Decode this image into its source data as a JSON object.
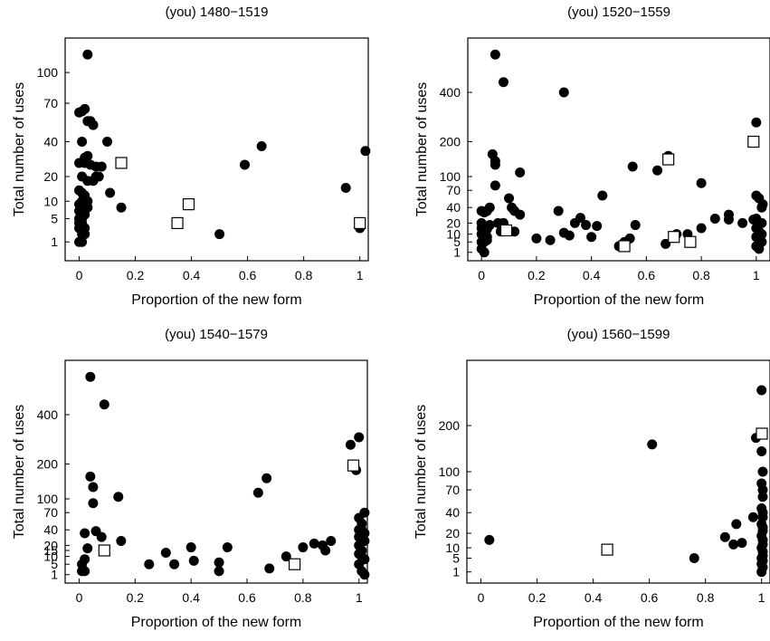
{
  "figure": {
    "panel_titles": [
      "(you)  1480−1519",
      "(you)  1520−1559",
      "(you)  1540−1579",
      "(you)  1560−1599"
    ]
  },
  "chart_data": [
    {
      "type": "scatter",
      "title": "(you)  1480−1519",
      "xlabel": "Proportion of the new form",
      "ylabel": "Total number of uses",
      "y_scale": "sqrt",
      "xlim": [
        -0.05,
        1.03
      ],
      "ylim": [
        0,
        140
      ],
      "xticks": [
        0,
        0.2,
        0.4,
        0.6,
        0.8,
        1
      ],
      "yticks": [
        1,
        5,
        10,
        20,
        40,
        70,
        100
      ],
      "series": [
        {
          "marker": "filled-circle",
          "x": [
            0.03,
            0.0,
            0.01,
            0.02,
            0.03,
            0.04,
            0.05,
            0.1,
            0.01,
            0.02,
            0.03,
            0.06,
            0.08,
            0.0,
            0.02,
            0.04,
            0.06,
            0.01,
            0.03,
            0.05,
            0.07,
            0.11,
            0.0,
            0.01,
            0.02,
            0.03,
            0.15,
            0.0,
            0.01,
            0.02,
            0.03,
            0.0,
            0.01,
            0.02,
            0.0,
            0.01,
            0.0,
            0.01,
            0.02,
            0.0,
            0.01,
            0.02,
            0.0,
            0.01,
            0.5,
            0.59,
            0.65,
            0.95,
            1.0,
            1.02
          ],
          "y": [
            120,
            62,
            63,
            65,
            55,
            55,
            52,
            40,
            40,
            30,
            31,
            25,
            25,
            27,
            27,
            26,
            20,
            20,
            18,
            18,
            20,
            13,
            14,
            13,
            12,
            10,
            8,
            9,
            10,
            9,
            8,
            7,
            6,
            6,
            5,
            5,
            4,
            4,
            3,
            3,
            2,
            2,
            1,
            1,
            2,
            26,
            37,
            15,
            3,
            34
          ]
        },
        {
          "marker": "open-square",
          "x": [
            0.15,
            0.35,
            0.39,
            1.0
          ],
          "y": [
            27,
            4,
            9,
            4
          ]
        }
      ]
    },
    {
      "type": "scatter",
      "title": "(you)  1520−1559",
      "xlabel": "Proportion of the new form",
      "ylabel": "Total number of uses",
      "y_scale": "sqrt",
      "xlim": [
        -0.05,
        1.05
      ],
      "ylim": [
        0,
        700
      ],
      "xticks": [
        0,
        0.2,
        0.4,
        0.6,
        0.8,
        1
      ],
      "yticks": [
        1,
        5,
        10,
        20,
        40,
        70,
        100,
        200,
        400
      ],
      "series": [
        {
          "marker": "filled-circle",
          "x": [
            0.05,
            0.08,
            0.3,
            0.04,
            0.05,
            0.05,
            0.14,
            0.05,
            0.03,
            0.1,
            0.0,
            0.01,
            0.02,
            0.12,
            0.14,
            0.11,
            0.0,
            0.06,
            0.08,
            0.0,
            0.01,
            0.02,
            0.03,
            0.07,
            0.12,
            0.0,
            0.01,
            0.02,
            0.0,
            0.01,
            0.02,
            0.0,
            0.01,
            0.2,
            0.25,
            0.28,
            0.3,
            0.32,
            0.34,
            0.36,
            0.38,
            0.4,
            0.42,
            0.44,
            0.5,
            0.52,
            0.54,
            0.55,
            0.56,
            0.64,
            0.68,
            0.67,
            0.8,
            0.8,
            0.9,
            0.95,
            0.99,
            1.0,
            1.0,
            1.01,
            1.02,
            1.03,
            1.0,
            1.01,
            1.02,
            1.0,
            1.01,
            1.02,
            1.0,
            1.01,
            1.02,
            1.0,
            1.01,
            0.85,
            0.9,
            0.75,
            0.71
          ],
          "y": [
            600,
            450,
            400,
            160,
            140,
            130,
            110,
            80,
            40,
            55,
            35,
            33,
            35,
            35,
            30,
            40,
            20,
            20,
            20,
            15,
            15,
            14,
            18,
            12,
            12,
            10,
            8,
            8,
            5,
            5,
            6,
            2,
            1,
            7,
            6,
            35,
            11,
            9,
            20,
            26,
            18,
            8,
            17,
            60,
            3,
            5,
            7,
            125,
            18,
            115,
            155,
            4,
            85,
            15,
            24,
            20,
            24,
            270,
            60,
            55,
            40,
            45,
            25,
            20,
            20,
            15,
            12,
            10,
            8,
            6,
            5,
            3,
            2,
            25,
            30,
            10,
            10
          ]
        },
        {
          "marker": "open-square",
          "x": [
            0.09,
            0.52,
            0.68,
            0.7,
            0.76,
            0.99
          ],
          "y": [
            13,
            3,
            145,
            8,
            5,
            200
          ]
        }
      ]
    },
    {
      "type": "scatter",
      "title": "(you)  1540−1579",
      "xlabel": "Proportion of the new form",
      "ylabel": "Total number of uses",
      "y_scale": "sqrt",
      "xlim": [
        -0.05,
        1.03
      ],
      "ylim": [
        0,
        700
      ],
      "xticks": [
        0,
        0.2,
        0.4,
        0.6,
        0.8,
        1
      ],
      "yticks": [
        1,
        5,
        10,
        15,
        20,
        40,
        70,
        100,
        200,
        400
      ],
      "series": [
        {
          "marker": "filled-circle",
          "x": [
            0.04,
            0.09,
            0.04,
            0.05,
            0.05,
            0.14,
            0.02,
            0.06,
            0.08,
            0.15,
            0.03,
            0.02,
            0.01,
            0.02,
            0.01,
            0.25,
            0.31,
            0.34,
            0.4,
            0.41,
            0.5,
            0.5,
            0.53,
            0.64,
            0.67,
            0.68,
            0.74,
            0.8,
            0.84,
            0.87,
            0.88,
            0.9,
            0.97,
            0.99,
            1.0,
            1.0,
            1.01,
            1.02,
            1.0,
            1.01,
            1.02,
            1.0,
            1.01,
            1.02,
            1.0,
            1.01,
            1.0,
            1.01,
            1.02,
            1.0,
            1.01,
            1.02
          ],
          "y": [
            600,
            450,
            160,
            130,
            90,
            105,
            35,
            38,
            30,
            25,
            17,
            8,
            5,
            2,
            2,
            5,
            13,
            5,
            18,
            7,
            2,
            6,
            18,
            115,
            155,
            3,
            10,
            18,
            22,
            20,
            15,
            25,
            270,
            180,
            300,
            60,
            50,
            70,
            40,
            40,
            35,
            30,
            28,
            25,
            20,
            15,
            12,
            10,
            8,
            5,
            2,
            1
          ]
        },
        {
          "marker": "open-square",
          "x": [
            0.09,
            0.77,
            0.98
          ],
          "y": [
            15,
            5,
            195
          ]
        }
      ]
    },
    {
      "type": "scatter",
      "title": "(you)  1560−1599",
      "xlabel": "Proportion of the new form",
      "ylabel": "Total number of uses",
      "y_scale": "sqrt",
      "xlim": [
        -0.05,
        1.03
      ],
      "ylim": [
        0,
        400
      ],
      "xticks": [
        0,
        0.2,
        0.4,
        0.6,
        0.8,
        1
      ],
      "yticks": [
        1,
        5,
        10,
        20,
        40,
        70,
        100,
        200
      ],
      "series": [
        {
          "marker": "filled-circle",
          "x": [
            0.03,
            0.61,
            0.76,
            0.87,
            0.9,
            0.91,
            0.93,
            0.97,
            0.98,
            1.0,
            1.0,
            1.01,
            1.0,
            1.01,
            1.02,
            1.0,
            1.01,
            1.02,
            1.0,
            1.01,
            1.02,
            1.0,
            1.01,
            1.02,
            1.0,
            1.01,
            1.02,
            1.0,
            1.01,
            1.0,
            1.01,
            1.0
          ],
          "y": [
            15,
            155,
            5,
            17,
            12,
            28,
            13,
            35,
            170,
            300,
            140,
            100,
            80,
            70,
            60,
            45,
            40,
            35,
            28,
            25,
            22,
            18,
            15,
            12,
            10,
            8,
            6,
            5,
            4,
            3,
            2,
            1
          ]
        },
        {
          "marker": "open-square",
          "x": [
            0.45,
            1.01
          ],
          "y": [
            9,
            180
          ]
        }
      ]
    }
  ]
}
